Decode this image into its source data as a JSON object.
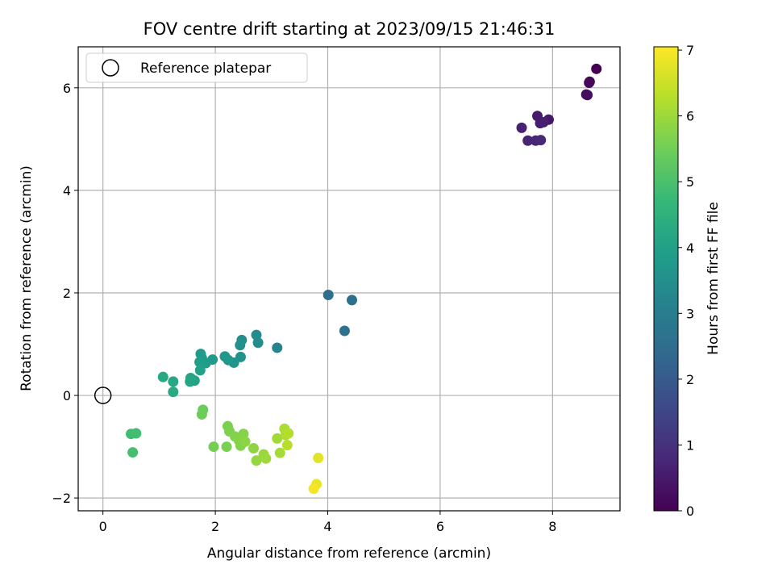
{
  "chart_data": {
    "type": "scatter",
    "title": "FOV centre drift starting at 2023/09/15 21:46:31",
    "xlabel": "Angular distance from reference (arcmin)",
    "ylabel": "Rotation from reference (arcmin)",
    "xlim": [
      -0.44,
      9.2
    ],
    "ylim": [
      -2.25,
      6.8
    ],
    "xticks": [
      0,
      2,
      4,
      6,
      8
    ],
    "yticks": [
      -2,
      0,
      2,
      4,
      6
    ],
    "grid": true,
    "legend": {
      "placement": "top-left",
      "label": "Reference platepar"
    },
    "reference_point": {
      "x": 0,
      "y": 0
    },
    "colorbar": {
      "label": "Hours from first FF file",
      "min": 0,
      "max": 7.05,
      "ticks": [
        0,
        1,
        2,
        3,
        4,
        5,
        6,
        7
      ],
      "colormap": "viridis",
      "colormap_stops": [
        "#440154",
        "#482878",
        "#3e4989",
        "#31688e",
        "#26828e",
        "#1f9e89",
        "#35b779",
        "#6ece58",
        "#b5de2b",
        "#fde725"
      ]
    },
    "points": [
      {
        "x": 8.78,
        "y": 6.37,
        "h": 0.0
      },
      {
        "x": 8.66,
        "y": 6.12,
        "h": 0.1
      },
      {
        "x": 8.65,
        "y": 6.1,
        "h": 0.15
      },
      {
        "x": 8.6,
        "y": 5.87,
        "h": 0.2
      },
      {
        "x": 8.62,
        "y": 5.86,
        "h": 0.25
      },
      {
        "x": 7.93,
        "y": 5.38,
        "h": 0.45
      },
      {
        "x": 7.73,
        "y": 5.45,
        "h": 0.5
      },
      {
        "x": 7.78,
        "y": 5.31,
        "h": 0.55
      },
      {
        "x": 7.84,
        "y": 5.33,
        "h": 0.6
      },
      {
        "x": 7.45,
        "y": 5.22,
        "h": 0.65
      },
      {
        "x": 7.56,
        "y": 4.97,
        "h": 0.7
      },
      {
        "x": 7.7,
        "y": 4.97,
        "h": 0.75
      },
      {
        "x": 7.79,
        "y": 4.98,
        "h": 0.8
      },
      {
        "x": 4.01,
        "y": 1.96,
        "h": 2.55
      },
      {
        "x": 4.43,
        "y": 1.86,
        "h": 2.6
      },
      {
        "x": 4.3,
        "y": 1.26,
        "h": 2.7
      },
      {
        "x": 3.1,
        "y": 0.93,
        "h": 3.2
      },
      {
        "x": 2.73,
        "y": 1.18,
        "h": 3.4
      },
      {
        "x": 2.76,
        "y": 1.03,
        "h": 3.45
      },
      {
        "x": 2.47,
        "y": 1.08,
        "h": 3.5
      },
      {
        "x": 2.44,
        "y": 0.98,
        "h": 3.55
      },
      {
        "x": 2.45,
        "y": 0.75,
        "h": 3.6
      },
      {
        "x": 2.33,
        "y": 0.64,
        "h": 3.65
      },
      {
        "x": 2.17,
        "y": 0.76,
        "h": 3.7
      },
      {
        "x": 2.23,
        "y": 0.69,
        "h": 3.75
      },
      {
        "x": 1.95,
        "y": 0.7,
        "h": 3.8
      },
      {
        "x": 1.83,
        "y": 0.63,
        "h": 3.85
      },
      {
        "x": 1.74,
        "y": 0.81,
        "h": 3.85
      },
      {
        "x": 1.76,
        "y": 0.73,
        "h": 3.9
      },
      {
        "x": 1.72,
        "y": 0.65,
        "h": 3.95
      },
      {
        "x": 1.73,
        "y": 0.49,
        "h": 4.0
      },
      {
        "x": 1.63,
        "y": 0.29,
        "h": 4.05
      },
      {
        "x": 1.56,
        "y": 0.34,
        "h": 4.1
      },
      {
        "x": 1.55,
        "y": 0.27,
        "h": 4.15
      },
      {
        "x": 1.25,
        "y": 0.27,
        "h": 4.2
      },
      {
        "x": 1.07,
        "y": 0.36,
        "h": 4.25
      },
      {
        "x": 1.25,
        "y": 0.07,
        "h": 4.3
      },
      {
        "x": 0.5,
        "y": -0.75,
        "h": 4.85
      },
      {
        "x": 0.59,
        "y": -0.74,
        "h": 4.9
      },
      {
        "x": 0.53,
        "y": -1.11,
        "h": 4.95
      },
      {
        "x": 1.78,
        "y": -0.28,
        "h": 5.4
      },
      {
        "x": 1.76,
        "y": -0.37,
        "h": 5.45
      },
      {
        "x": 1.97,
        "y": -1.0,
        "h": 5.55
      },
      {
        "x": 2.2,
        "y": -1.0,
        "h": 5.6
      },
      {
        "x": 2.22,
        "y": -0.6,
        "h": 5.6
      },
      {
        "x": 2.25,
        "y": -0.7,
        "h": 5.65
      },
      {
        "x": 2.35,
        "y": -0.8,
        "h": 5.7
      },
      {
        "x": 2.45,
        "y": -0.98,
        "h": 5.7
      },
      {
        "x": 2.5,
        "y": -0.75,
        "h": 5.75
      },
      {
        "x": 2.42,
        "y": -0.88,
        "h": 5.75
      },
      {
        "x": 2.53,
        "y": -0.9,
        "h": 5.8
      },
      {
        "x": 2.68,
        "y": -1.03,
        "h": 5.85
      },
      {
        "x": 2.73,
        "y": -1.27,
        "h": 5.9
      },
      {
        "x": 2.86,
        "y": -1.15,
        "h": 5.95
      },
      {
        "x": 2.9,
        "y": -1.23,
        "h": 6.0
      },
      {
        "x": 3.1,
        "y": -0.84,
        "h": 6.05
      },
      {
        "x": 3.15,
        "y": -1.12,
        "h": 6.1
      },
      {
        "x": 3.23,
        "y": -0.65,
        "h": 6.15
      },
      {
        "x": 3.25,
        "y": -0.77,
        "h": 6.2
      },
      {
        "x": 3.3,
        "y": -0.74,
        "h": 6.25
      },
      {
        "x": 3.28,
        "y": -0.97,
        "h": 6.3
      },
      {
        "x": 3.83,
        "y": -1.22,
        "h": 6.75
      },
      {
        "x": 3.8,
        "y": -1.73,
        "h": 6.85
      },
      {
        "x": 3.75,
        "y": -1.82,
        "h": 6.95
      }
    ]
  }
}
